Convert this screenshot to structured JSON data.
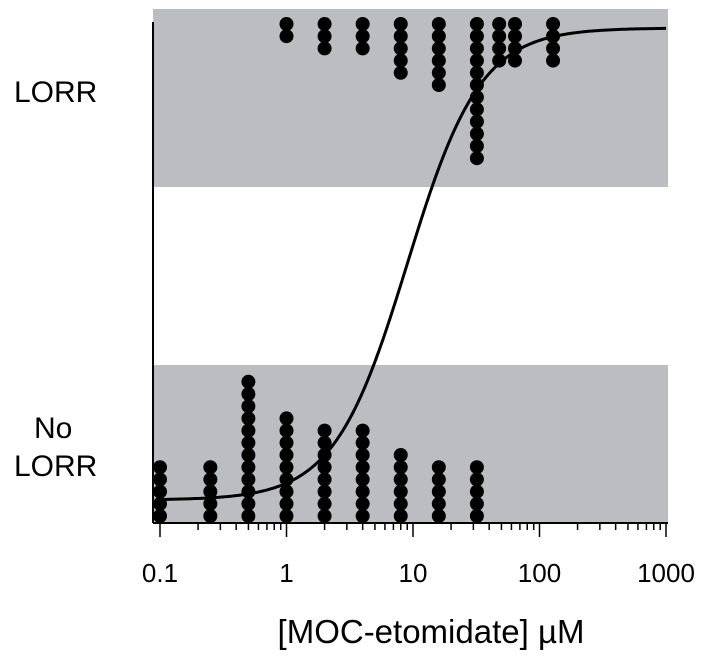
{
  "chart_data": {
    "type": "scatter",
    "xscale": "log",
    "xlim": [
      0.1,
      1000
    ],
    "xlabel": "[MOC-etomidate] µM",
    "xtick_labels": [
      "0.1",
      "1",
      "10",
      "100",
      "1000"
    ],
    "xticks": [
      0.1,
      1,
      10,
      100,
      1000
    ],
    "categories": [
      "LORR",
      "No LORR"
    ],
    "category_label_lines": {
      "LORR": [
        "LORR"
      ],
      "No LORR": [
        "No",
        "LORR"
      ]
    },
    "band_color": "#bcbdc0",
    "lorr_counts": [
      {
        "x": 1,
        "n": 2
      },
      {
        "x": 2,
        "n": 3
      },
      {
        "x": 4,
        "n": 3
      },
      {
        "x": 8,
        "n": 5
      },
      {
        "x": 16,
        "n": 6
      },
      {
        "x": 32,
        "n": 12
      },
      {
        "x": 48,
        "n": 4
      },
      {
        "x": 64,
        "n": 4
      },
      {
        "x": 128,
        "n": 4
      }
    ],
    "no_lorr_counts": [
      {
        "x": 0.1,
        "n": 5
      },
      {
        "x": 0.25,
        "n": 5
      },
      {
        "x": 0.5,
        "n": 12
      },
      {
        "x": 1,
        "n": 9
      },
      {
        "x": 2,
        "n": 8
      },
      {
        "x": 4,
        "n": 8
      },
      {
        "x": 8,
        "n": 6
      },
      {
        "x": 16,
        "n": 5
      },
      {
        "x": 32,
        "n": 5
      }
    ],
    "fit_curve": {
      "type": "logistic",
      "ec50": 9,
      "hill": 1.5
    }
  }
}
